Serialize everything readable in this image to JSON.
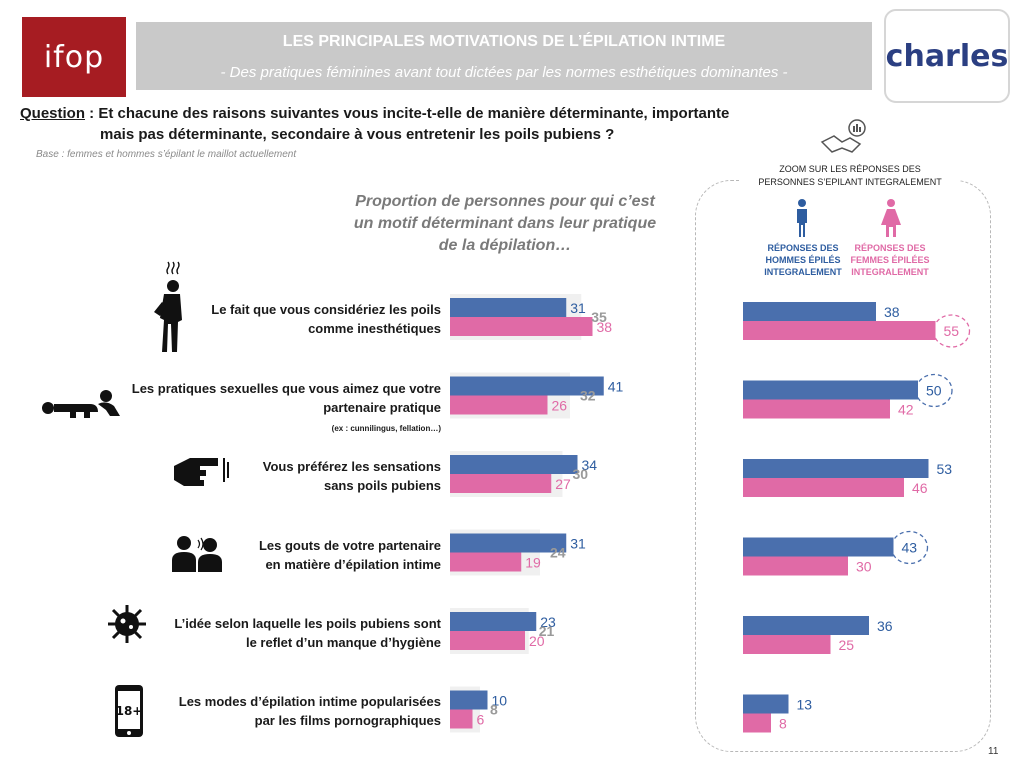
{
  "header": {
    "ifop_logo": "ifop",
    "title": "LES PRINCIPALES MOTIVATIONS DE L’ÉPILATION INTIME",
    "subtitle": "- Des pratiques féminines avant tout dictées par les normes esthétiques dominantes -",
    "charles_logo": "charles"
  },
  "question": {
    "label": "Question",
    "line1": " : Et chacune des raisons suivantes vous incite-t-elle de manière déterminante, importante",
    "line2": "mais pas déterminante, secondaire à vous entretenir les poils pubiens ?"
  },
  "base": "Base : femmes et hommes s’épilant le maillot actuellement",
  "headline": {
    "line1": "Proportion de personnes pour qui c’est",
    "line2": "un motif déterminant dans leur pratique",
    "line3": "de la dépilation…"
  },
  "zoom": {
    "title_line1": "ZOOM SUR LES RÉPONSES DES",
    "title_line2": "PERSONNES S’EPILANT INTEGRALEMENT",
    "men_line1": "RÉPONSES DES",
    "men_line2": "HOMMES ÉPILÉS",
    "men_line3": "INTEGRALEMENT",
    "women_line1": "RÉPONSES DES",
    "women_line2": "FEMMES ÉPILÉES",
    "women_line3": "INTEGRALEMENT"
  },
  "rows": [
    {
      "line1": "Le fait que vous considériez les poils",
      "line2": "comme inesthétiques",
      "note": ""
    },
    {
      "line1": "Les pratiques sexuelles que vous aimez que votre",
      "line2": "partenaire pratique ",
      "note": "(ex : cunnilingus, fellation…)"
    },
    {
      "line1": "Vous préférez les sensations",
      "line2": "sans poils pubiens",
      "note": ""
    },
    {
      "line1": "Les gouts de votre partenaire",
      "line2": "en matière d’épilation intime",
      "note": ""
    },
    {
      "line1": "L’idée selon laquelle les poils pubiens sont",
      "line2": "le reflet d’un manque d’hygiène",
      "note": ""
    },
    {
      "line1": "Les modes d’épilation intime popularisées",
      "line2": "par les films pornographiques",
      "note": ""
    }
  ],
  "icons": [
    "shaving-man-icon",
    "sexual-practice-icon",
    "touch-hand-icon",
    "couple-icon",
    "germ-icon",
    "adult-18-phone-icon"
  ],
  "page_number": "11",
  "chart_data": [
    {
      "type": "bar",
      "orientation": "horizontal",
      "categories": [
        "Le fait que vous considériez les poils comme inesthétiques",
        "Les pratiques sexuelles que vous aimez que votre partenaire pratique (ex : cunnilingus, fellation…)",
        "Vous préférez les sensations sans poils pubiens",
        "Les gouts de votre partenaire en matière d’épilation intime",
        "L’idée selon laquelle les poils pubiens sont le reflet d’un manque d’hygiène",
        "Les modes d’épilation intime popularisées par les films pornographiques"
      ],
      "series": [
        {
          "key": "men",
          "values": [
            31,
            41,
            34,
            31,
            23,
            10
          ],
          "color": "#4a6fad"
        },
        {
          "key": "women",
          "values": [
            38,
            26,
            27,
            19,
            20,
            6
          ],
          "color": "#e06aa6"
        },
        {
          "key": "total",
          "values": [
            35,
            32,
            30,
            24,
            21,
            8
          ],
          "color": "#f0f0f0",
          "label_color": "#9a9a9a"
        }
      ]
    },
    {
      "type": "bar",
      "orientation": "horizontal",
      "title": "ZOOM SUR LES RÉPONSES DES PERSONNES S’EPILANT INTEGRALEMENT",
      "categories": [
        "Le fait que vous considériez les poils comme inesthétiques",
        "Les pratiques sexuelles que vous aimez que votre partenaire pratique (ex : cunnilingus, fellation…)",
        "Vous préférez les sensations sans poils pubiens",
        "Les gouts de votre partenaire en matière d’épilation intime",
        "L’idée selon laquelle les poils pubiens sont le reflet d’un manque d’hygiène",
        "Les modes d’épilation intime popularisées par les films pornographiques"
      ],
      "series": [
        {
          "name": "RÉPONSES DES HOMMES ÉPILÉS INTEGRALEMENT",
          "key": "men",
          "values": [
            38,
            50,
            53,
            43,
            36,
            13
          ],
          "color": "#4a6fad"
        },
        {
          "name": "RÉPONSES DES FEMMES ÉPILÉES INTEGRALEMENT",
          "key": "women",
          "values": [
            55,
            42,
            46,
            30,
            25,
            8
          ],
          "color": "#e06aa6"
        }
      ],
      "highlighted": [
        {
          "category_index": 0,
          "series": "women"
        },
        {
          "category_index": 1,
          "series": "men"
        },
        {
          "category_index": 3,
          "series": "men"
        }
      ]
    }
  ]
}
